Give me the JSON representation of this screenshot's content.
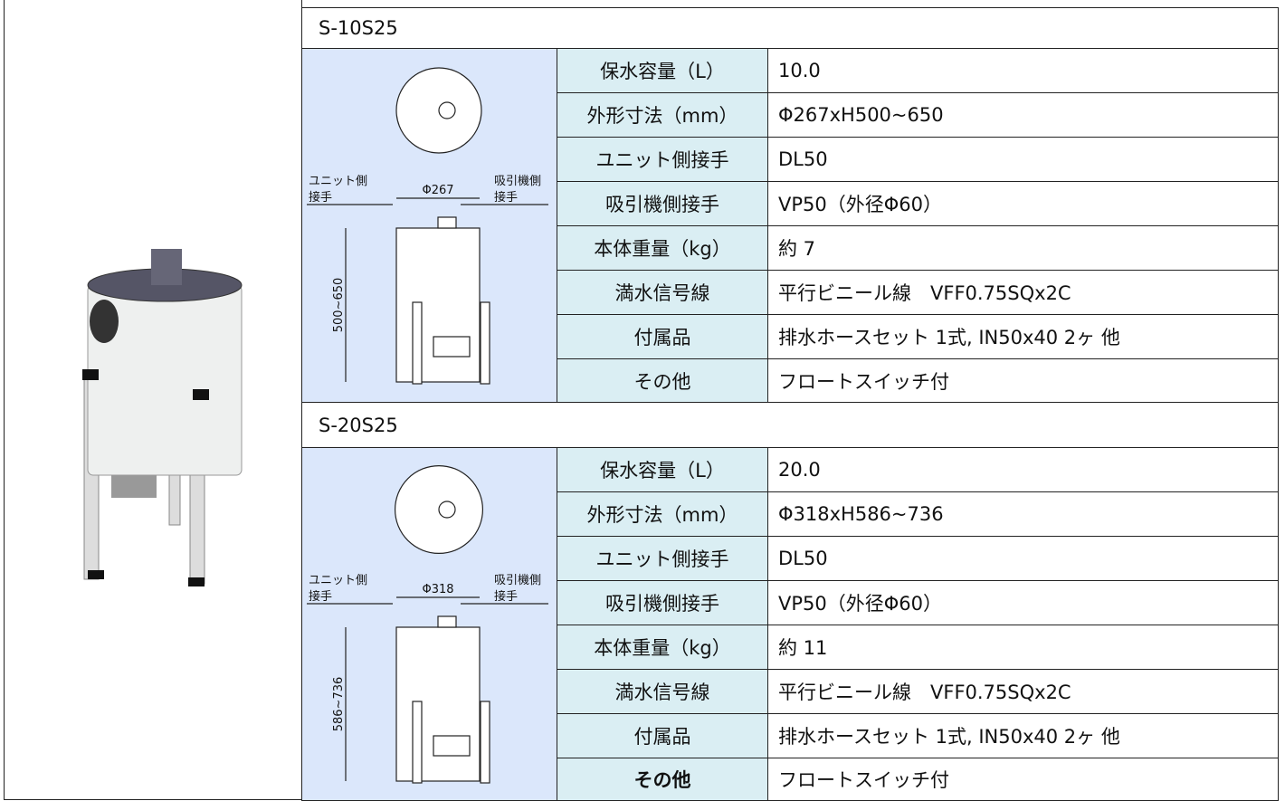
{
  "sections": [
    {
      "model": "S-10S25",
      "drawing": {
        "unit_side_joint": [
          "ユニット側",
          "接手"
        ],
        "suction_side_joint": [
          "吸引機側",
          "接手"
        ],
        "diameter": "Φ267",
        "height": "500~650"
      },
      "specs": [
        {
          "label": "保水容量（L）",
          "value": "10.0"
        },
        {
          "label": "外形寸法（mm）",
          "value": "Φ267xH500~650"
        },
        {
          "label": "ユニット側接手",
          "value": "DL50"
        },
        {
          "label": "吸引機側接手",
          "value": "VP50（外径Φ60）"
        },
        {
          "label": "本体重量（kg）",
          "value": "約 7"
        },
        {
          "label": "満水信号線",
          "value": "平行ビニール線　VFF0.75SQx2C"
        },
        {
          "label": "付属品",
          "value": "排水ホースセット 1式, IN50x40 2ヶ 他"
        },
        {
          "label": "その他",
          "value": "フロートスイッチ付"
        }
      ]
    },
    {
      "model": "S-20S25",
      "drawing": {
        "unit_side_joint": [
          "ユニット側",
          "接手"
        ],
        "suction_side_joint": [
          "吸引機側",
          "接手"
        ],
        "diameter": "Φ318",
        "height": "586~736"
      },
      "specs": [
        {
          "label": "保水容量（L）",
          "value": "20.0"
        },
        {
          "label": "外形寸法（mm）",
          "value": "Φ318xH586~736"
        },
        {
          "label": "ユニット側接手",
          "value": "DL50"
        },
        {
          "label": "吸引機側接手",
          "value": "VP50（外径Φ60）"
        },
        {
          "label": "本体重量（kg）",
          "value": "約 11"
        },
        {
          "label": "満水信号線",
          "value": "平行ビニール線　VFF0.75SQx2C"
        },
        {
          "label": "付属品",
          "value": "排水ホースセット 1式, IN50x40 2ヶ 他"
        },
        {
          "label": "その他",
          "value": "フロートスイッチ付"
        }
      ]
    }
  ]
}
